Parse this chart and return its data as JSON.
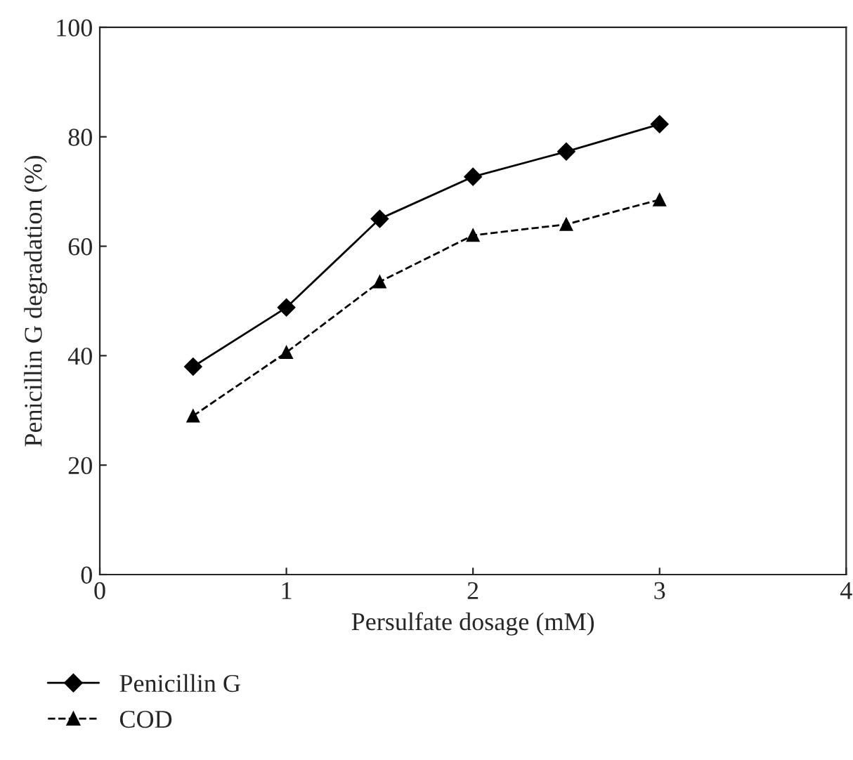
{
  "chart_data": {
    "type": "line",
    "xlabel": "Persulfate dosage (mM)",
    "ylabel": "Penicillin G degradation (%)",
    "x": [
      0.5,
      1,
      1.5,
      2,
      2.5,
      3
    ],
    "series": [
      {
        "name": "Penicillin G",
        "color": "#000000",
        "marker": "diamond",
        "line_style": "solid",
        "values": [
          38,
          48.8,
          65,
          72.7,
          77.3,
          82.3
        ]
      },
      {
        "name": "COD",
        "color": "#000000",
        "marker": "triangle",
        "line_style": "dashed",
        "values": [
          29,
          40.6,
          53.5,
          62,
          64,
          68.5
        ]
      }
    ],
    "xlim": [
      0,
      4
    ],
    "xticks": [
      0,
      1,
      2,
      3,
      4
    ],
    "ylim": [
      0,
      100
    ],
    "yticks": [
      0,
      20,
      40,
      60,
      80,
      100
    ],
    "grid": false,
    "legend": "bottom"
  }
}
